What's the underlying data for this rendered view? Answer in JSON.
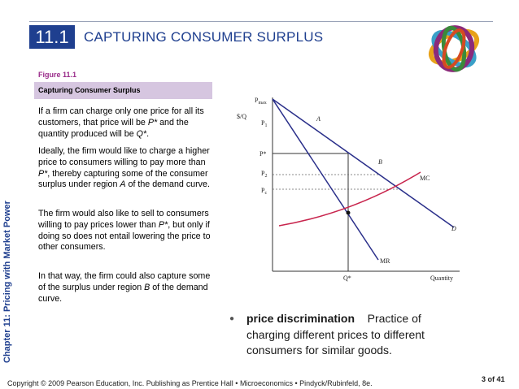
{
  "header": {
    "slide_number": "11.1",
    "title": "CAPTURING CONSUMER SURPLUS"
  },
  "sidebar": {
    "vertical_title": "Chapter 11: Pricing with Market Power"
  },
  "figure": {
    "label": "Figure 11.1",
    "caption": "Capturing Consumer Surplus"
  },
  "body": {
    "paragraphs": [
      "If a firm can charge only one price for all its customers, that price will be P* and the quantity produced will be Q*.",
      "Ideally, the firm would like to charge a higher price to consumers willing to pay more than P*, thereby capturing some of the consumer surplus under region A of the demand curve.",
      "The firm would also like to sell to consumers willing to pay prices lower than P*, but only if doing so does not entail lowering the price to other consumers.",
      "In that way, the firm could also capture some of the surplus under region B of the demand curve."
    ]
  },
  "graph": {
    "y_axis_label": "$/Q",
    "x_axis_label": "Quantity",
    "labels": {
      "pmax": "P",
      "pmax_sub": "max",
      "p1": "P",
      "p1_sub": "1",
      "pstar": "P*",
      "p2": "P",
      "p2_sub": "2",
      "pc": "P",
      "pc_sub": "c",
      "qstar": "Q*",
      "region_a": "A",
      "region_b": "B",
      "mc": "MC",
      "mr": "MR",
      "d": "D"
    },
    "colors": {
      "demand": "#2a2f8a",
      "mr": "#2a2f8a",
      "mc": "#c8254d",
      "guide": "#555555"
    }
  },
  "definition": {
    "term": "price discrimination",
    "text": "Practice of charging different prices to different consumers for similar goods."
  },
  "footer": {
    "copyright": "Copyright © 2009 Pearson Education, Inc. Publishing as Prentice Hall • Microeconomics • Pindyck/Rubinfeld, 8e.",
    "page": "3 of 41"
  }
}
